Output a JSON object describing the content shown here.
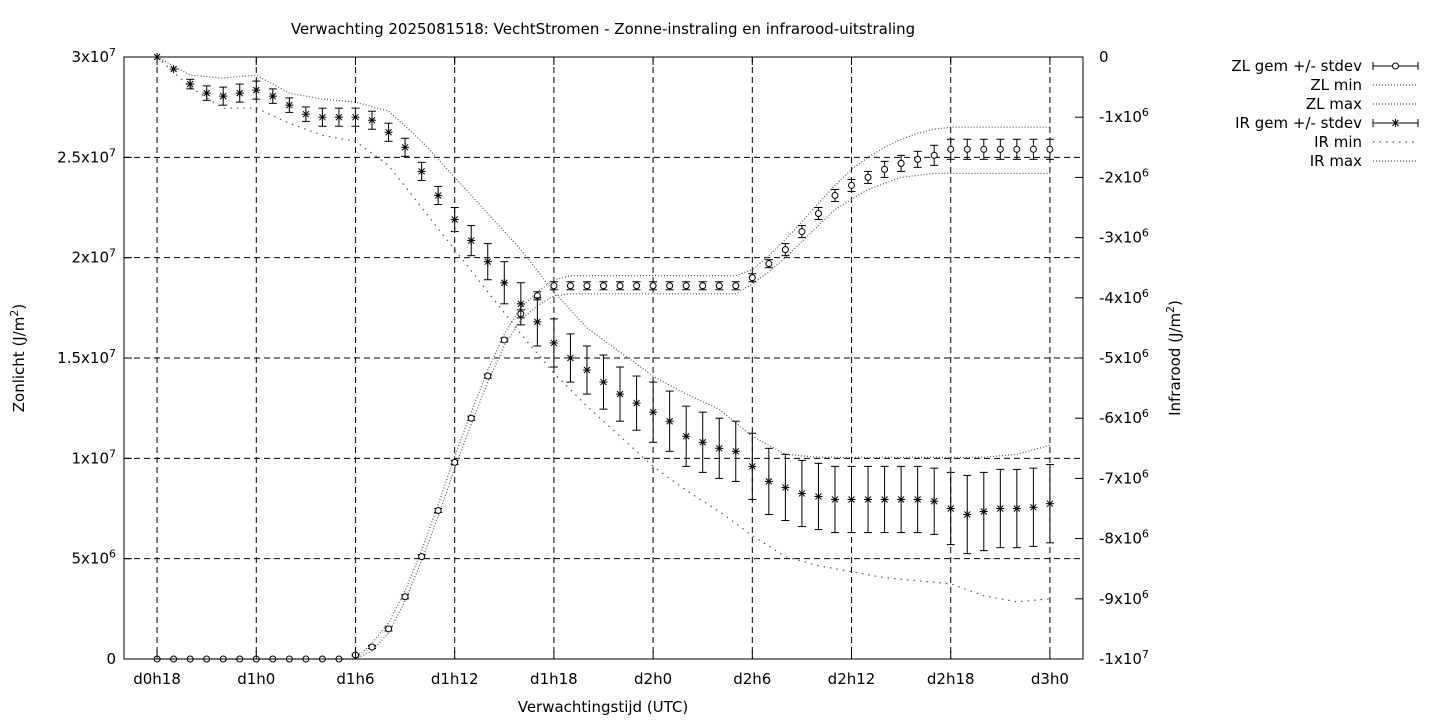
{
  "chart_data": {
    "type": "line",
    "title": "Verwachting 2025081518: VechtStromen - Zonne-instraling en infrarood-uitstraling",
    "xlabel": "Verwachtingstijd (UTC)",
    "ylabel_left": {
      "base": "Zonlicht (J/m",
      "sup": "2",
      "tail": ")"
    },
    "ylabel_right": {
      "base": "Infrarood (J/m",
      "sup": "2",
      "tail": ")"
    },
    "x_ticks": [
      "d0h18",
      "d1h0",
      "d1h6",
      "d1h12",
      "d1h18",
      "d2h0",
      "d2h6",
      "d2h12",
      "d2h18",
      "d3h0"
    ],
    "x_range_hours": [
      16,
      74
    ],
    "x_tick_hours": [
      18,
      24,
      30,
      36,
      42,
      48,
      54,
      60,
      66,
      72
    ],
    "y_left": {
      "range": [
        0,
        30000000
      ],
      "ticks": [
        {
          "value": 0,
          "base": "0",
          "exp": ""
        },
        {
          "value": 5000000,
          "base": "5x10",
          "exp": "6"
        },
        {
          "value": 10000000,
          "base": "1x10",
          "exp": "7"
        },
        {
          "value": 15000000,
          "base": "1.5x10",
          "exp": "7"
        },
        {
          "value": 20000000,
          "base": "2x10",
          "exp": "7"
        },
        {
          "value": 25000000,
          "base": "2.5x10",
          "exp": "7"
        },
        {
          "value": 30000000,
          "base": "3x10",
          "exp": "7"
        }
      ]
    },
    "y_right": {
      "range": [
        -10000000,
        0
      ],
      "ticks": [
        {
          "value": 0,
          "base": "0",
          "exp": ""
        },
        {
          "value": -1000000,
          "base": "-1x10",
          "exp": "6"
        },
        {
          "value": -2000000,
          "base": "-2x10",
          "exp": "6"
        },
        {
          "value": -3000000,
          "base": "-3x10",
          "exp": "6"
        },
        {
          "value": -4000000,
          "base": "-4x10",
          "exp": "6"
        },
        {
          "value": -5000000,
          "base": "-5x10",
          "exp": "6"
        },
        {
          "value": -6000000,
          "base": "-6x10",
          "exp": "6"
        },
        {
          "value": -7000000,
          "base": "-7x10",
          "exp": "6"
        },
        {
          "value": -8000000,
          "base": "-8x10",
          "exp": "6"
        },
        {
          "value": -9000000,
          "base": "-9x10",
          "exp": "6"
        },
        {
          "value": -10000000,
          "base": "-1x10",
          "exp": "7"
        }
      ]
    },
    "grid": true,
    "legend_position": "top-right outside",
    "legend": [
      {
        "label": "ZL gem +/- stdev",
        "style": "errorbar-circle"
      },
      {
        "label": "ZL min",
        "style": "dotted"
      },
      {
        "label": "ZL max",
        "style": "dotted"
      },
      {
        "label": "IR gem +/- stdev",
        "style": "errorbar-star"
      },
      {
        "label": "IR min",
        "style": "dotted-sparse"
      },
      {
        "label": "IR max",
        "style": "dotted"
      }
    ],
    "series": [
      {
        "name": "ZL gem +/- stdev",
        "axis": "left",
        "x": [
          18,
          19,
          20,
          21,
          22,
          23,
          24,
          25,
          26,
          27,
          28,
          29,
          30,
          31,
          32,
          33,
          34,
          35,
          36,
          37,
          38,
          39,
          40,
          41,
          42,
          43,
          44,
          45,
          46,
          47,
          48,
          49,
          50,
          51,
          52,
          53,
          54,
          55,
          56,
          57,
          58,
          59,
          60,
          61,
          62,
          63,
          64,
          65,
          66,
          67,
          68,
          69,
          70,
          71,
          72
        ],
        "mean": [
          0,
          0,
          0,
          0,
          0,
          0,
          0,
          0,
          0,
          0,
          0,
          0,
          200000,
          600000,
          1500000,
          3100000,
          5100000,
          7400000,
          9800000,
          12000000,
          14100000,
          15900000,
          17200000,
          18100000,
          18600000,
          18600000,
          18600000,
          18600000,
          18600000,
          18600000,
          18600000,
          18600000,
          18600000,
          18600000,
          18600000,
          18600000,
          19000000,
          19700000,
          20400000,
          21300000,
          22200000,
          23100000,
          23600000,
          24000000,
          24400000,
          24700000,
          24900000,
          25100000,
          25400000,
          25400000,
          25400000,
          25400000,
          25400000,
          25400000,
          25400000
        ],
        "stdev": [
          0,
          0,
          0,
          0,
          0,
          0,
          0,
          0,
          0,
          0,
          0,
          0,
          50000,
          80000,
          100000,
          100000,
          100000,
          100000,
          100000,
          100000,
          100000,
          100000,
          200000,
          200000,
          200000,
          200000,
          200000,
          200000,
          200000,
          200000,
          200000,
          200000,
          200000,
          200000,
          200000,
          200000,
          200000,
          200000,
          300000,
          300000,
          300000,
          300000,
          300000,
          300000,
          400000,
          400000,
          400000,
          500000,
          500000,
          500000,
          500000,
          500000,
          500000,
          500000,
          500000
        ]
      },
      {
        "name": "ZL min",
        "axis": "left",
        "x": [
          18,
          24,
          30,
          31,
          32,
          33,
          34,
          35,
          36,
          37,
          38,
          39,
          40,
          41,
          42,
          43,
          48,
          53,
          54,
          55,
          56,
          57,
          58,
          59,
          60,
          61,
          62,
          63,
          64,
          65,
          66,
          69,
          72
        ],
        "values": [
          0,
          0,
          0,
          400000,
          1300000,
          2900000,
          4900000,
          7100000,
          9500000,
          11700000,
          13800000,
          15600000,
          16900000,
          17600000,
          18100000,
          18200000,
          18200000,
          18200000,
          18700000,
          19300000,
          20000000,
          20800000,
          21600000,
          22400000,
          22900000,
          23400000,
          23700000,
          24000000,
          24100000,
          24200000,
          24200000,
          24200000,
          24200000
        ]
      },
      {
        "name": "ZL max",
        "axis": "left",
        "x": [
          18,
          24,
          30,
          31,
          32,
          33,
          34,
          35,
          36,
          37,
          38,
          39,
          40,
          41,
          42,
          43,
          48,
          53,
          54,
          55,
          56,
          57,
          58,
          59,
          60,
          61,
          62,
          63,
          64,
          65,
          66,
          69,
          72
        ],
        "values": [
          0,
          0,
          0,
          800000,
          1800000,
          3400000,
          5400000,
          7700000,
          10100000,
          12300000,
          14400000,
          16200000,
          17500000,
          18300000,
          18900000,
          19100000,
          19100000,
          19100000,
          19400000,
          20100000,
          20900000,
          21800000,
          22700000,
          23600000,
          24400000,
          25000000,
          25500000,
          25900000,
          26200000,
          26400000,
          26500000,
          26500000,
          26500000
        ]
      },
      {
        "name": "IR gem +/- stdev",
        "axis": "right",
        "x": [
          18,
          19,
          20,
          21,
          22,
          23,
          24,
          25,
          26,
          27,
          28,
          29,
          30,
          31,
          32,
          33,
          34,
          35,
          36,
          37,
          38,
          39,
          40,
          41,
          42,
          43,
          44,
          45,
          46,
          47,
          48,
          49,
          50,
          51,
          52,
          53,
          54,
          55,
          56,
          57,
          58,
          59,
          60,
          61,
          62,
          63,
          64,
          65,
          66,
          67,
          68,
          69,
          70,
          71,
          72
        ],
        "mean": [
          0,
          -200000,
          -450000,
          -600000,
          -650000,
          -600000,
          -550000,
          -650000,
          -800000,
          -950000,
          -1000000,
          -1000000,
          -1000000,
          -1050000,
          -1250000,
          -1500000,
          -1900000,
          -2300000,
          -2700000,
          -3050000,
          -3400000,
          -3750000,
          -4100000,
          -4400000,
          -4750000,
          -5000000,
          -5200000,
          -5400000,
          -5600000,
          -5750000,
          -5900000,
          -6050000,
          -6300000,
          -6400000,
          -6500000,
          -6550000,
          -6800000,
          -7050000,
          -7150000,
          -7250000,
          -7300000,
          -7350000,
          -7350000,
          -7350000,
          -7350000,
          -7350000,
          -7350000,
          -7380000,
          -7500000,
          -7600000,
          -7550000,
          -7500000,
          -7500000,
          -7480000,
          -7420000
        ],
        "stdev": [
          0,
          0,
          80000,
          120000,
          150000,
          150000,
          150000,
          120000,
          120000,
          120000,
          150000,
          150000,
          150000,
          150000,
          150000,
          150000,
          150000,
          150000,
          200000,
          250000,
          300000,
          350000,
          350000,
          400000,
          400000,
          400000,
          400000,
          450000,
          450000,
          450000,
          500000,
          500000,
          500000,
          500000,
          500000,
          500000,
          550000,
          550000,
          550000,
          550000,
          550000,
          550000,
          550000,
          550000,
          550000,
          550000,
          550000,
          550000,
          600000,
          650000,
          650000,
          650000,
          650000,
          650000,
          650000
        ]
      },
      {
        "name": "IR min",
        "axis": "right",
        "x": [
          18,
          20,
          22,
          24,
          26,
          28,
          30,
          32,
          34,
          36,
          38,
          40,
          42,
          44,
          46,
          48,
          50,
          52,
          54,
          56,
          58,
          60,
          62,
          64,
          66,
          68,
          70,
          72
        ],
        "values": [
          0,
          -500000,
          -850000,
          -850000,
          -1100000,
          -1300000,
          -1400000,
          -1800000,
          -2500000,
          -3200000,
          -3900000,
          -4600000,
          -5250000,
          -5800000,
          -6300000,
          -6800000,
          -7200000,
          -7550000,
          -7950000,
          -8300000,
          -8450000,
          -8550000,
          -8650000,
          -8700000,
          -8750000,
          -8950000,
          -9050000,
          -9000000
        ]
      },
      {
        "name": "IR max",
        "axis": "right",
        "x": [
          18,
          20,
          22,
          24,
          26,
          28,
          30,
          32,
          34,
          36,
          38,
          40,
          42,
          44,
          46,
          48,
          50,
          52,
          54,
          56,
          58,
          60,
          62,
          64,
          66,
          68,
          70,
          72
        ],
        "values": [
          0,
          -300000,
          -350000,
          -300000,
          -600000,
          -700000,
          -750000,
          -900000,
          -1400000,
          -2000000,
          -2600000,
          -3200000,
          -3900000,
          -4500000,
          -4900000,
          -5300000,
          -5600000,
          -5850000,
          -6300000,
          -6600000,
          -6650000,
          -6650000,
          -6650000,
          -6650000,
          -6650000,
          -6650000,
          -6600000,
          -6450000
        ]
      }
    ]
  }
}
